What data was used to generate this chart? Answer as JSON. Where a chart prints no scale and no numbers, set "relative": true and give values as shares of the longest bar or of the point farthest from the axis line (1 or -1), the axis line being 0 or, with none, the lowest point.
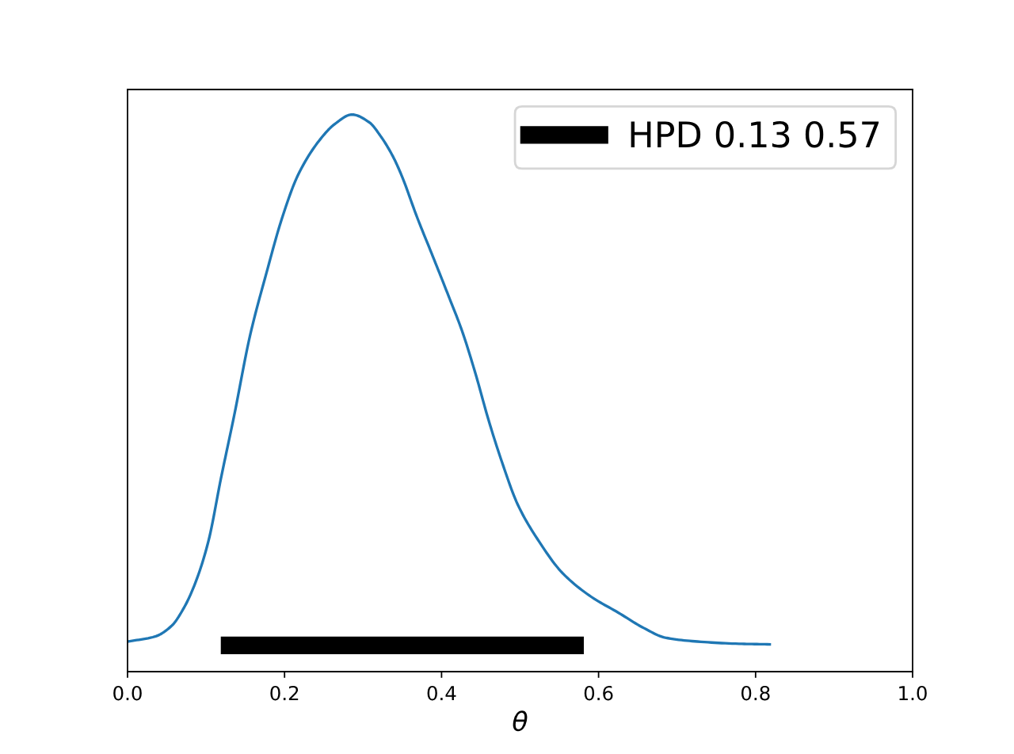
{
  "chart_data": {
    "type": "line",
    "xlabel": "θ",
    "relative": true,
    "legend": "top right",
    "tick_labels": "x",
    "xlim": [
      0,
      1
    ],
    "xticks": [
      {
        "value": 0,
        "label": "0.0"
      },
      0.2,
      0.4,
      0.6,
      0.8,
      {
        "value": 1,
        "label": "1.0"
      }
    ],
    "series": [
      {
        "color": "#1f77b4",
        "x": [
          0,
          0.035,
          0.056,
          0.072,
          0.086,
          0.103,
          0.119,
          0.136,
          0.156,
          0.177,
          0.197,
          0.217,
          0.244,
          0.264,
          0.286,
          0.308,
          0.322,
          0.338,
          0.349,
          0.369,
          0.389,
          0.409,
          0.426,
          0.443,
          0.46,
          0.477,
          0.497,
          0.524,
          0.554,
          0.591,
          0.625,
          0.658,
          0.685,
          0.726,
          0.779,
          0.818
        ],
        "values": [
          0.054,
          0.063,
          0.082,
          0.115,
          0.158,
          0.234,
          0.347,
          0.461,
          0.603,
          0.716,
          0.815,
          0.891,
          0.953,
          0.983,
          1,
          0.986,
          0.962,
          0.925,
          0.891,
          0.815,
          0.745,
          0.674,
          0.612,
          0.536,
          0.451,
          0.376,
          0.3,
          0.234,
          0.177,
          0.134,
          0.106,
          0.078,
          0.061,
          0.054,
          0.05,
          0.049
        ]
      },
      {
        "name": "HPD 0.13 0.57",
        "color": "#000000",
        "x": [
          0.13,
          0.57
        ],
        "values": [
          0.047,
          0.047
        ]
      }
    ]
  }
}
